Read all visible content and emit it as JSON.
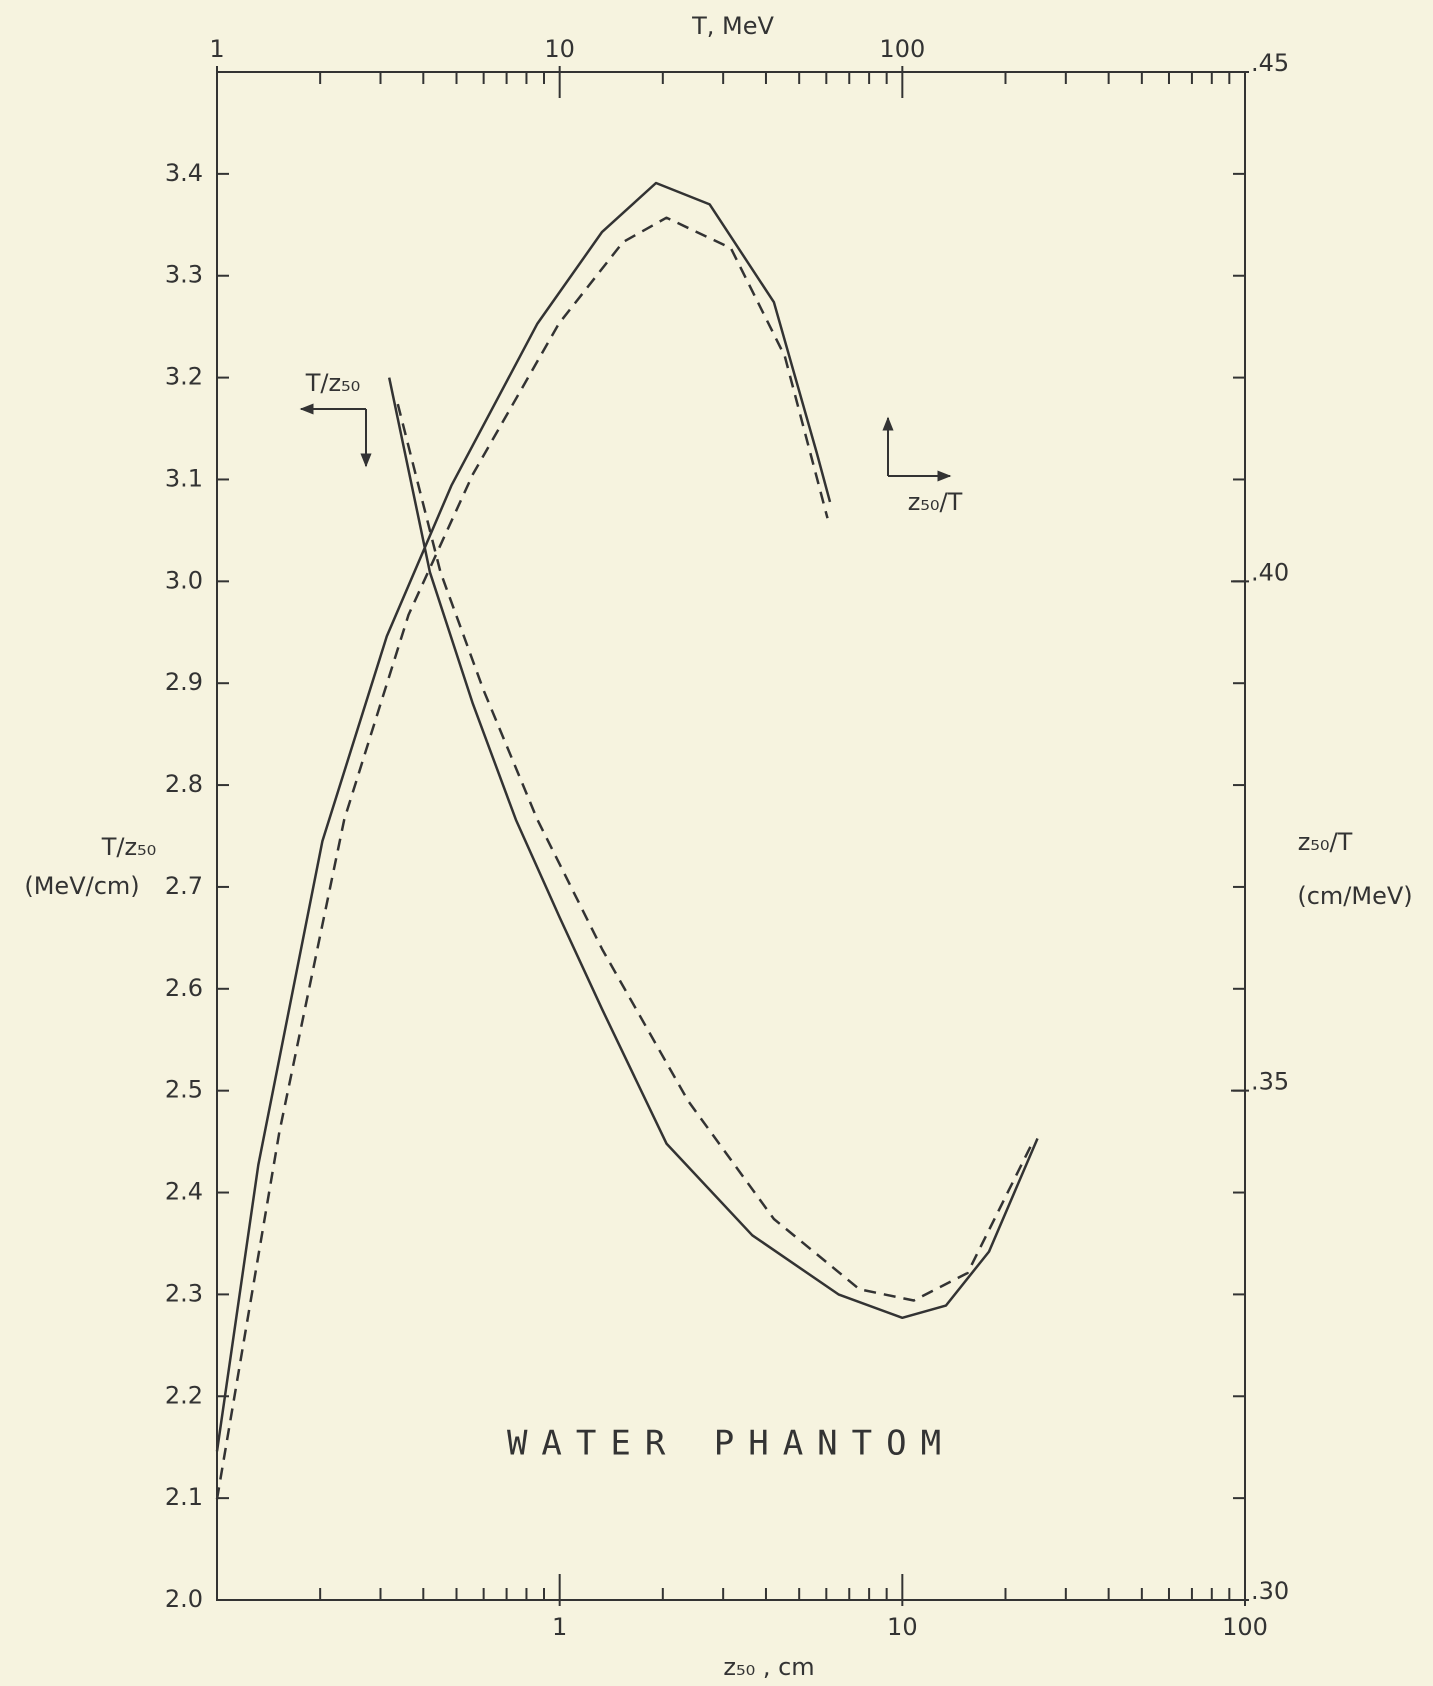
{
  "chart_data": {
    "type": "line",
    "title": "WATER PHANTOM",
    "xlabel": "z₅₀ , cm",
    "x2label": "T, MeV",
    "ylabel": [
      "T/z₅₀",
      "(MeV/cm)"
    ],
    "y2label": [
      "z₅₀/T",
      "(cm/MeV)"
    ],
    "xscale": "log",
    "x2scale": "log",
    "xlim": [
      0.1,
      100
    ],
    "xticks": [
      1,
      10,
      100
    ],
    "x2lim": [
      1,
      1000
    ],
    "x2ticks": [
      1,
      10,
      100
    ],
    "ylim": [
      2.0,
      3.5
    ],
    "yticks": [
      {
        "value": 2.0,
        "label": "2.0"
      },
      2.1,
      2.2,
      2.3,
      2.4,
      2.5,
      2.6,
      2.7,
      2.8,
      2.9,
      {
        "value": 3.0,
        "label": "3.0"
      },
      3.1,
      3.2,
      3.3,
      3.4
    ],
    "y2lim": [
      0.3,
      0.45
    ],
    "y2ticks": [
      {
        "value": 0.3,
        "label": ".30"
      },
      {
        "value": 0.35,
        "label": ".35"
      },
      {
        "value": 0.4,
        "label": ".40"
      },
      {
        "value": 0.45,
        "label": ".45"
      }
    ],
    "annotations": [
      {
        "text": "T/z₅₀",
        "direction": "left-down"
      },
      {
        "text": "z₅₀/T",
        "direction": "up-right"
      }
    ],
    "series": [
      {
        "style": "solid",
        "color": "#333333",
        "x": [
          0.318,
          0.418,
          0.558,
          0.745,
          1.0,
          1.33,
          2.05,
          3.65,
          6.51,
          10.0,
          13.4,
          17.9,
          24.8
        ],
        "values": [
          3.2,
          3.009,
          2.88,
          2.766,
          2.67,
          2.58,
          2.448,
          2.358,
          2.3,
          2.277,
          2.289,
          2.342,
          2.453
        ]
      },
      {
        "style": "dashed",
        "color": "#333333",
        "x": [
          0.337,
          0.449,
          0.6,
          0.861,
          1.33,
          2.37,
          4.22,
          7.5,
          10.8,
          15.5,
          23.9
        ],
        "values": [
          3.174,
          3.009,
          2.893,
          2.766,
          2.639,
          2.49,
          2.374,
          2.305,
          2.294,
          2.321,
          2.448
        ]
      },
      {
        "style": "solid",
        "color": "#333333",
        "axis": "y2",
        "xaxis": "x2",
        "x": [
          1,
          1.32,
          2.03,
          3.13,
          4.83,
          8.61,
          13.3,
          19.1,
          27.4,
          42.2,
          56.3,
          61.5
        ],
        "values": [
          0.3146,
          0.3427,
          0.3745,
          0.3946,
          0.4094,
          0.4253,
          0.4343,
          0.4391,
          0.437,
          0.4274,
          0.4126,
          0.4078
        ]
      },
      {
        "style": "dashed",
        "color": "#333333",
        "axis": "y2",
        "xaxis": "x2",
        "x": [
          1,
          1.52,
          2.35,
          3.62,
          5.58,
          9.95,
          15.3,
          20.5,
          31.6,
          45.4,
          60.5
        ],
        "values": [
          0.3099,
          0.3459,
          0.3766,
          0.3967,
          0.4105,
          0.4253,
          0.4333,
          0.4357,
          0.4327,
          0.4221,
          0.4062
        ]
      }
    ]
  }
}
